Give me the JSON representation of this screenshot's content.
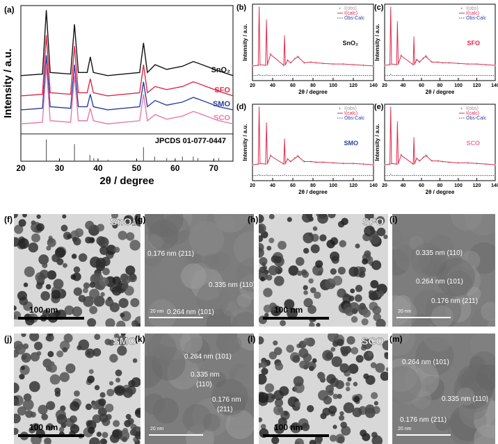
{
  "chart_data": [
    {
      "type": "line",
      "panel": "(a)",
      "xlabel": "2θ / degree",
      "ylabel": "Intensity / a.u.",
      "x": [
        20,
        25.6,
        26.6,
        27.6,
        32.9,
        33.9,
        34.9,
        37.2,
        38.0,
        38.8,
        42.5,
        50.8,
        51.8,
        52.8,
        54.8,
        57.8,
        61.9,
        64.7,
        65.9,
        71.3,
        75
      ],
      "xlim": [
        20,
        75
      ],
      "xticks": [
        20,
        30,
        40,
        50,
        60,
        70
      ],
      "ylim": [
        0,
        100
      ],
      "series": [
        {
          "name": "SnO₂",
          "color": "#111111",
          "values": [
            55,
            56,
            97,
            57,
            56,
            88,
            57,
            57,
            67,
            57,
            55,
            57,
            76,
            57,
            62,
            59,
            61,
            64,
            63,
            58,
            55
          ]
        },
        {
          "name": "SFO",
          "color": "#e0284a",
          "values": [
            42,
            43,
            81,
            44,
            43,
            74,
            44,
            44,
            53,
            44,
            42,
            44,
            62,
            44,
            48,
            46,
            48,
            51,
            50,
            45,
            42
          ]
        },
        {
          "name": "SMO",
          "color": "#2a3fa0",
          "values": [
            33,
            34,
            68,
            35,
            34,
            62,
            35,
            35,
            43,
            35,
            33,
            35,
            51,
            35,
            39,
            36,
            38,
            41,
            40,
            35,
            33
          ]
        },
        {
          "name": "SCO",
          "color": "#e87aa8",
          "values": [
            24,
            25,
            61,
            26,
            25,
            55,
            26,
            26,
            34,
            26,
            24,
            26,
            43,
            26,
            30,
            27,
            29,
            32,
            31,
            26,
            24
          ]
        }
      ],
      "reference": {
        "name": "JPCDS 01-077-0447",
        "color": "#666666",
        "x": [
          26.6,
          33.9,
          37.9,
          38.9,
          42.6,
          51.8,
          54.7,
          57.8,
          61.9,
          64.7,
          65.9,
          71.3
        ],
        "values": [
          14,
          11,
          4,
          2,
          1,
          9,
          3,
          2,
          3,
          3,
          2,
          2
        ]
      }
    },
    {
      "type": "line",
      "panel": "(b)",
      "sample": "SnO₂",
      "sample_color": "#111111",
      "xlabel": "2θ / degree",
      "ylabel": "Intensity / a.u.",
      "x": [
        20,
        25.7,
        26.6,
        27.5,
        33,
        33.9,
        34.8,
        37.9,
        51,
        51.8,
        52.6,
        54.8,
        57.8,
        61.9,
        64.7,
        65.9,
        71.3,
        78,
        83,
        90,
        100,
        110,
        120,
        130,
        140
      ],
      "xlim": [
        20,
        140
      ],
      "xticks": [
        20,
        40,
        60,
        80,
        100,
        120,
        140
      ],
      "ylim": [
        -20,
        100
      ],
      "series": [
        {
          "name": "I(obs)",
          "color": "#999999",
          "style": "cross",
          "values": [
            3,
            4,
            95,
            5,
            4,
            75,
            5,
            22,
            4,
            50,
            5,
            12,
            8,
            15,
            18,
            17,
            8,
            9,
            8,
            7,
            6,
            6,
            5,
            4,
            3
          ]
        },
        {
          "name": "I(calc)",
          "color": "#e0284a",
          "style": "solid",
          "values": [
            3,
            4,
            94,
            5,
            4,
            74,
            5,
            21,
            4,
            49,
            5,
            12,
            8,
            14,
            17,
            16,
            8,
            9,
            8,
            7,
            6,
            6,
            5,
            4,
            3
          ]
        },
        {
          "name": "Obs-Calc",
          "color": "#2a3fa0",
          "style": "dotted",
          "values": [
            -12,
            -12,
            -10,
            -12,
            -12,
            -11,
            -12,
            -12,
            -12,
            -11,
            -12,
            -12,
            -12,
            -12,
            -12,
            -12,
            -12,
            -12,
            -12,
            -12,
            -12,
            -12,
            -12,
            -12,
            -12
          ]
        }
      ]
    },
    {
      "type": "line",
      "panel": "(c)",
      "sample": "SFO",
      "sample_color": "#e0284a",
      "xlabel": "2θ / degree",
      "ylabel": "Intensity / a.u.",
      "x": [
        20,
        25.7,
        26.6,
        27.5,
        33,
        33.9,
        34.8,
        37.9,
        51,
        51.8,
        52.6,
        54.8,
        57.8,
        61.9,
        64.7,
        65.9,
        71.3,
        78,
        83,
        90,
        100,
        110,
        120,
        130,
        140
      ],
      "xlim": [
        20,
        140
      ],
      "xticks": [
        20,
        40,
        60,
        80,
        100,
        120,
        140
      ],
      "ylim": [
        -20,
        100
      ],
      "series": [
        {
          "name": "I(obs)",
          "color": "#999999",
          "style": "cross",
          "values": [
            4,
            5,
            95,
            6,
            5,
            72,
            6,
            20,
            5,
            48,
            6,
            13,
            9,
            15,
            19,
            17,
            9,
            9,
            8,
            8,
            7,
            6,
            6,
            5,
            4
          ]
        },
        {
          "name": "I(calc)",
          "color": "#e0284a",
          "style": "solid",
          "values": [
            4,
            5,
            94,
            6,
            5,
            71,
            6,
            19,
            5,
            47,
            6,
            13,
            9,
            15,
            18,
            16,
            9,
            9,
            8,
            8,
            7,
            6,
            6,
            5,
            4
          ]
        },
        {
          "name": "Obs-Calc",
          "color": "#2a3fa0",
          "style": "dotted",
          "values": [
            -12,
            -12,
            -10,
            -12,
            -12,
            -11,
            -12,
            -12,
            -12,
            -11,
            -12,
            -12,
            -12,
            -12,
            -12,
            -12,
            -12,
            -12,
            -12,
            -12,
            -12,
            -12,
            -12,
            -12,
            -12
          ]
        }
      ]
    },
    {
      "type": "line",
      "panel": "(d)",
      "sample": "SMO",
      "sample_color": "#2a3fa0",
      "xlabel": "2θ / degree",
      "ylabel": "Intensity / a.u.",
      "x": [
        20,
        25.7,
        26.6,
        27.5,
        33,
        33.9,
        34.8,
        37.9,
        51,
        51.8,
        52.6,
        54.8,
        57.8,
        61.9,
        64.7,
        65.9,
        71.3,
        78,
        83,
        90,
        100,
        110,
        120,
        130,
        140
      ],
      "xlim": [
        20,
        140
      ],
      "xticks": [
        20,
        40,
        60,
        80,
        100,
        120,
        140
      ],
      "ylim": [
        -20,
        100
      ],
      "series": [
        {
          "name": "I(obs)",
          "color": "#999999",
          "style": "cross",
          "values": [
            5,
            6,
            95,
            7,
            6,
            70,
            7,
            20,
            6,
            45,
            7,
            14,
            10,
            16,
            19,
            18,
            10,
            10,
            9,
            9,
            8,
            7,
            7,
            6,
            5
          ]
        },
        {
          "name": "I(calc)",
          "color": "#e0284a",
          "style": "solid",
          "values": [
            5,
            6,
            94,
            7,
            6,
            69,
            7,
            19,
            6,
            44,
            7,
            14,
            10,
            15,
            18,
            17,
            10,
            10,
            9,
            9,
            8,
            7,
            7,
            6,
            5
          ]
        },
        {
          "name": "Obs-Calc",
          "color": "#2a3fa0",
          "style": "dotted",
          "values": [
            -12,
            -12,
            -10,
            -12,
            -12,
            -11,
            -12,
            -12,
            -12,
            -11,
            -12,
            -12,
            -12,
            -12,
            -12,
            -12,
            -12,
            -12,
            -12,
            -12,
            -12,
            -12,
            -12,
            -12,
            -12
          ]
        }
      ]
    },
    {
      "type": "line",
      "panel": "(e)",
      "sample": "SCO",
      "sample_color": "#e87aa8",
      "xlabel": "2θ / degree",
      "ylabel": "Intensity / a.u.",
      "x": [
        20,
        25.7,
        26.6,
        27.5,
        33,
        33.9,
        34.8,
        37.9,
        51,
        51.8,
        52.6,
        54.8,
        57.8,
        61.9,
        64.7,
        65.9,
        71.3,
        78,
        83,
        90,
        100,
        110,
        120,
        130,
        140
      ],
      "xlim": [
        20,
        140
      ],
      "xticks": [
        20,
        40,
        60,
        80,
        100,
        120,
        140
      ],
      "ylim": [
        -20,
        100
      ],
      "series": [
        {
          "name": "I(obs)",
          "color": "#999999",
          "style": "cross",
          "values": [
            5,
            6,
            95,
            7,
            6,
            72,
            7,
            21,
            6,
            47,
            7,
            15,
            11,
            17,
            20,
            19,
            11,
            11,
            10,
            9,
            8,
            8,
            7,
            6,
            5
          ]
        },
        {
          "name": "I(calc)",
          "color": "#e0284a",
          "style": "solid",
          "values": [
            5,
            6,
            94,
            7,
            6,
            71,
            7,
            20,
            6,
            46,
            7,
            15,
            11,
            16,
            19,
            18,
            11,
            11,
            10,
            9,
            8,
            8,
            7,
            6,
            5
          ]
        },
        {
          "name": "Obs-Calc",
          "color": "#2a3fa0",
          "style": "dotted",
          "values": [
            -12,
            -12,
            -10,
            -12,
            -12,
            -11,
            -12,
            -12,
            -12,
            -11,
            -12,
            -12,
            -12,
            -12,
            -12,
            -12,
            -12,
            -12,
            -12,
            -12,
            -12,
            -12,
            -12,
            -12,
            -12
          ]
        }
      ]
    }
  ],
  "images": [
    {
      "panel": "(f)",
      "sample": "SnO₂",
      "scale_bar": "100 nm"
    },
    {
      "panel": "(g)",
      "scale_bar": "20 nm",
      "annotations": [
        "0.176 nm (211)",
        "0.335 nm (110)",
        "0.264 nm (101)"
      ]
    },
    {
      "panel": "(h)",
      "sample": "SFO",
      "scale_bar": "100 nm"
    },
    {
      "panel": "(i)",
      "scale_bar": "20 nm",
      "annotations": [
        "0.335 nm (110)",
        "0.264 nm (101)",
        "0.176 nm (211)"
      ]
    },
    {
      "panel": "(j)",
      "sample": "SMO",
      "scale_bar": "100 nm"
    },
    {
      "panel": "(k)",
      "scale_bar": "20 nm",
      "annotations": [
        "0.264 nm (101)",
        "0.335 nm",
        "(110)",
        "0.176 nm",
        "(211)"
      ]
    },
    {
      "panel": "(l)",
      "sample": "SCO",
      "scale_bar": "100 nm"
    },
    {
      "panel": "(m)",
      "scale_bar": "20 nm",
      "annotations": [
        "0.264 nm (101)",
        "0.335 nm (110)",
        "0.176 nm (211)"
      ]
    }
  ]
}
